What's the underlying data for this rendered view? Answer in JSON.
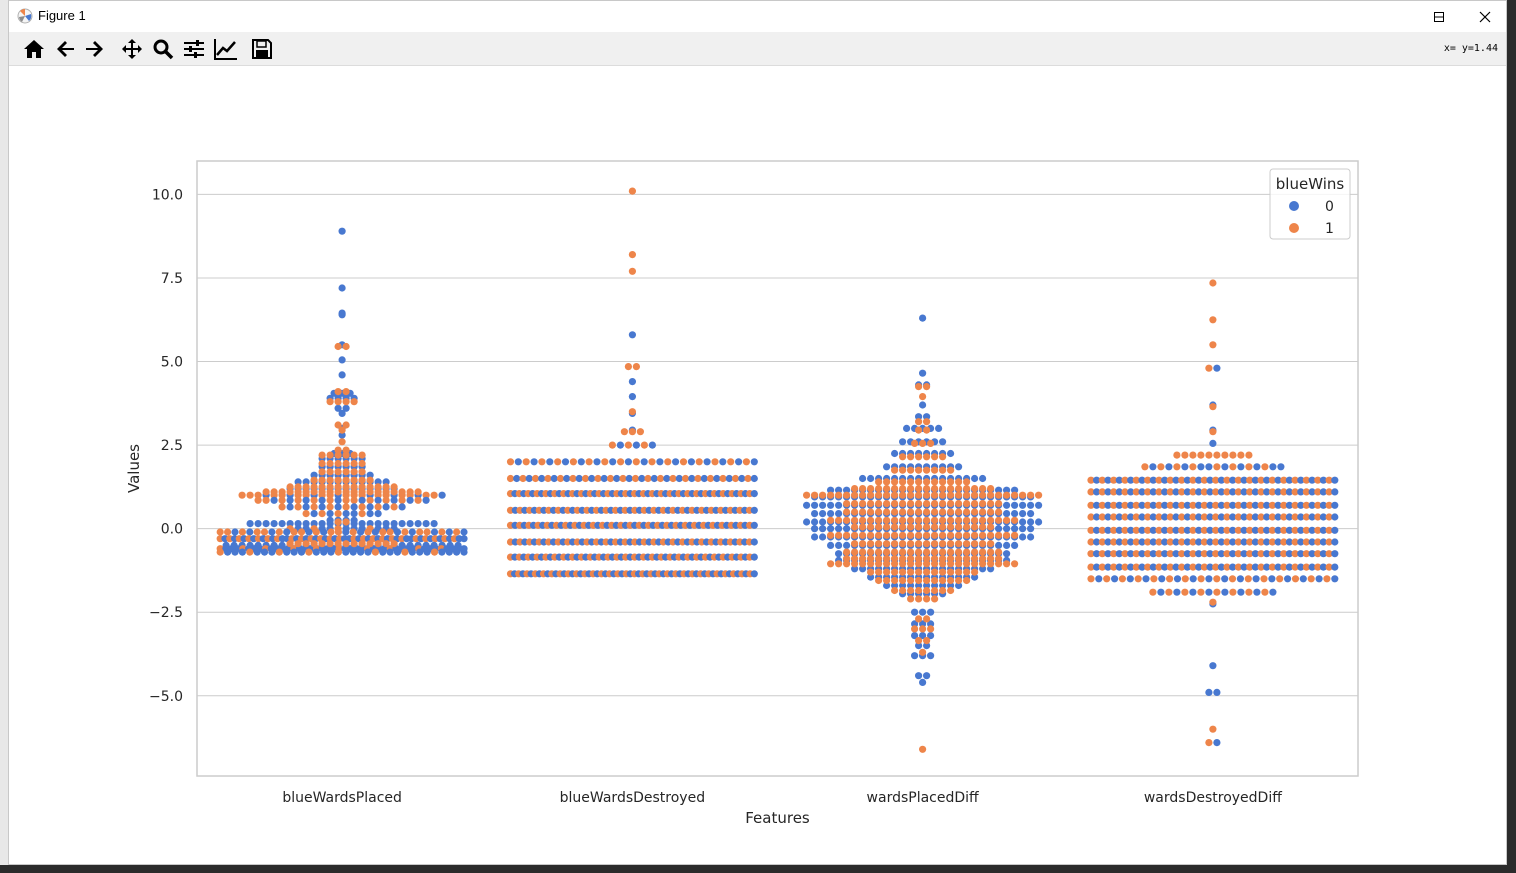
{
  "window": {
    "title": "Figure 1",
    "coord_readout": "x= y=1.44"
  },
  "toolbar": {
    "buttons": [
      "home-icon",
      "back-arrow-icon",
      "forward-arrow-icon",
      "pan-icon",
      "zoom-icon",
      "configure-subplots-icon",
      "edit-axis-icon",
      "save-icon"
    ]
  },
  "colors": {
    "series_0": "#4878d0",
    "series_1": "#ee854a",
    "grid": "#cccccc",
    "axes_frame": "#cccccc"
  },
  "chart_data": {
    "type": "scatter",
    "subtype": "swarm",
    "title": "",
    "xlabel": "Features",
    "ylabel": "Values",
    "categories": [
      "blueWardsPlaced",
      "blueWardsDestroyed",
      "wardsPlacedDiff",
      "wardsDestroyedDiff"
    ],
    "ylim": [
      -7.4,
      11.0
    ],
    "yticks": [
      -5.0,
      -2.5,
      0.0,
      2.5,
      5.0,
      7.5,
      10.0
    ],
    "ytick_labels": [
      "−5.0",
      "−2.5",
      "0.0",
      "2.5",
      "5.0",
      "7.5",
      "10.0"
    ],
    "grid": true,
    "legend": {
      "title": "blueWins",
      "placement": "top-right",
      "entries": [
        "0",
        "1"
      ]
    },
    "series": [
      {
        "label": "0",
        "values": [
          [
            [
              8.9,
              1
            ],
            [
              7.2,
              1
            ],
            [
              6.45,
              1
            ],
            [
              6.4,
              1
            ],
            [
              5.5,
              1
            ],
            [
              5.05,
              1
            ],
            [
              4.6,
              1
            ],
            [
              4.05,
              3
            ],
            [
              3.9,
              4
            ],
            [
              3.6,
              2
            ],
            [
              3.45,
              1
            ],
            [
              3.0,
              1
            ],
            [
              2.8,
              1
            ],
            [
              2.25,
              3
            ],
            [
              2.1,
              6
            ],
            [
              1.85,
              6
            ],
            [
              1.6,
              8
            ],
            [
              1.4,
              12
            ],
            [
              1.2,
              14
            ],
            [
              1.0,
              8
            ],
            [
              0.85,
              10
            ],
            [
              0.65,
              8
            ],
            [
              0.45,
              6
            ],
            [
              0.25,
              4
            ],
            [
              0.15,
              24
            ],
            [
              0.0,
              10
            ],
            [
              -0.1,
              14
            ],
            [
              -0.3,
              28
            ],
            [
              -0.5,
              30
            ],
            [
              -0.6,
              34
            ],
            [
              -0.7,
              26
            ]
          ],
          [
            [
              5.8,
              1
            ],
            [
              4.4,
              1
            ],
            [
              3.95,
              1
            ],
            [
              3.45,
              1
            ],
            [
              2.95,
              1
            ],
            [
              2.5,
              3
            ],
            [
              2.0,
              16
            ],
            [
              1.5,
              20
            ],
            [
              1.05,
              28
            ],
            [
              0.55,
              26
            ],
            [
              0.1,
              27
            ],
            [
              -0.4,
              26
            ],
            [
              -0.85,
              28
            ],
            [
              -1.35,
              30
            ]
          ],
          [
            [
              6.3,
              1
            ],
            [
              4.65,
              1
            ],
            [
              4.3,
              2
            ],
            [
              3.7,
              1
            ],
            [
              3.35,
              2
            ],
            [
              3.0,
              5
            ],
            [
              2.6,
              6
            ],
            [
              2.25,
              8
            ],
            [
              1.85,
              10
            ],
            [
              1.5,
              16
            ],
            [
              1.15,
              24
            ],
            [
              0.95,
              28
            ],
            [
              0.7,
              30
            ],
            [
              0.45,
              28
            ],
            [
              0.2,
              30
            ],
            [
              0.0,
              28
            ],
            [
              -0.25,
              28
            ],
            [
              -0.5,
              24
            ],
            [
              -0.75,
              22
            ],
            [
              -0.95,
              22
            ],
            [
              -1.2,
              18
            ],
            [
              -1.45,
              14
            ],
            [
              -1.7,
              10
            ],
            [
              -1.95,
              6
            ],
            [
              -2.5,
              3
            ],
            [
              -2.85,
              3
            ],
            [
              -3.2,
              3
            ],
            [
              -3.5,
              2
            ],
            [
              -3.8,
              3
            ],
            [
              -4.4,
              2
            ],
            [
              -4.6,
              1
            ]
          ],
          [
            [
              4.8,
              1
            ],
            [
              3.7,
              1
            ],
            [
              2.95,
              1
            ],
            [
              2.55,
              1
            ],
            [
              1.85,
              10
            ],
            [
              1.45,
              22
            ],
            [
              1.1,
              22
            ],
            [
              0.7,
              22
            ],
            [
              0.35,
              22
            ],
            [
              -0.05,
              22
            ],
            [
              -0.4,
              22
            ],
            [
              -0.75,
              22
            ],
            [
              -1.15,
              22
            ],
            [
              -1.5,
              16
            ],
            [
              -1.9,
              8
            ],
            [
              -2.25,
              1
            ],
            [
              -4.1,
              1
            ],
            [
              -4.9,
              2
            ],
            [
              -6.4,
              1
            ]
          ]
        ]
      },
      {
        "label": "1",
        "values": [
          [
            [
              5.45,
              2
            ],
            [
              4.1,
              2
            ],
            [
              3.8,
              4
            ],
            [
              3.1,
              2
            ],
            [
              2.95,
              1
            ],
            [
              2.6,
              1
            ],
            [
              2.35,
              2
            ],
            [
              2.2,
              6
            ],
            [
              1.95,
              6
            ],
            [
              1.7,
              6
            ],
            [
              1.45,
              8
            ],
            [
              1.25,
              14
            ],
            [
              1.1,
              20
            ],
            [
              1.0,
              18
            ],
            [
              0.85,
              12
            ],
            [
              0.65,
              8
            ],
            [
              0.45,
              4
            ],
            [
              0.2,
              2
            ],
            [
              0.0,
              4
            ],
            [
              -0.1,
              20
            ],
            [
              -0.3,
              24
            ],
            [
              -0.45,
              14
            ],
            [
              -0.6,
              10
            ],
            [
              -0.7,
              8
            ]
          ],
          [
            [
              10.1,
              1
            ],
            [
              8.2,
              1
            ],
            [
              7.7,
              1
            ],
            [
              4.85,
              2
            ],
            [
              3.5,
              1
            ],
            [
              2.9,
              3
            ],
            [
              2.5,
              3
            ],
            [
              2.0,
              16
            ],
            [
              1.5,
              20
            ],
            [
              1.05,
              28
            ],
            [
              0.55,
              26
            ],
            [
              0.1,
              27
            ],
            [
              -0.4,
              26
            ],
            [
              -0.85,
              28
            ],
            [
              -1.35,
              30
            ]
          ],
          [
            [
              4.25,
              2
            ],
            [
              3.95,
              1
            ],
            [
              3.2,
              2
            ],
            [
              2.95,
              2
            ],
            [
              2.55,
              3
            ],
            [
              2.15,
              6
            ],
            [
              1.75,
              8
            ],
            [
              1.4,
              12
            ],
            [
              1.2,
              18
            ],
            [
              1.0,
              30
            ],
            [
              0.75,
              20
            ],
            [
              0.5,
              20
            ],
            [
              0.25,
              24
            ],
            [
              0.05,
              18
            ],
            [
              -0.2,
              24
            ],
            [
              -0.45,
              18
            ],
            [
              -0.7,
              20
            ],
            [
              -0.9,
              20
            ],
            [
              -1.05,
              24
            ],
            [
              -1.3,
              14
            ],
            [
              -1.55,
              12
            ],
            [
              -1.85,
              8
            ],
            [
              -2.1,
              4
            ],
            [
              -2.7,
              2
            ],
            [
              -3.0,
              3
            ],
            [
              -3.35,
              2
            ],
            [
              -3.7,
              1
            ],
            [
              -6.6,
              1
            ]
          ],
          [
            [
              7.35,
              1
            ],
            [
              6.25,
              1
            ],
            [
              5.5,
              1
            ],
            [
              4.8,
              1
            ],
            [
              3.65,
              1
            ],
            [
              2.9,
              1
            ],
            [
              2.2,
              10
            ],
            [
              1.85,
              8
            ],
            [
              1.45,
              22
            ],
            [
              1.1,
              22
            ],
            [
              0.7,
              22
            ],
            [
              0.35,
              22
            ],
            [
              -0.05,
              22
            ],
            [
              -0.4,
              22
            ],
            [
              -0.75,
              22
            ],
            [
              -1.15,
              22
            ],
            [
              -1.5,
              16
            ],
            [
              -1.9,
              8
            ],
            [
              -2.2,
              1
            ],
            [
              -6.0,
              1
            ],
            [
              -6.4,
              1
            ]
          ]
        ]
      }
    ]
  }
}
